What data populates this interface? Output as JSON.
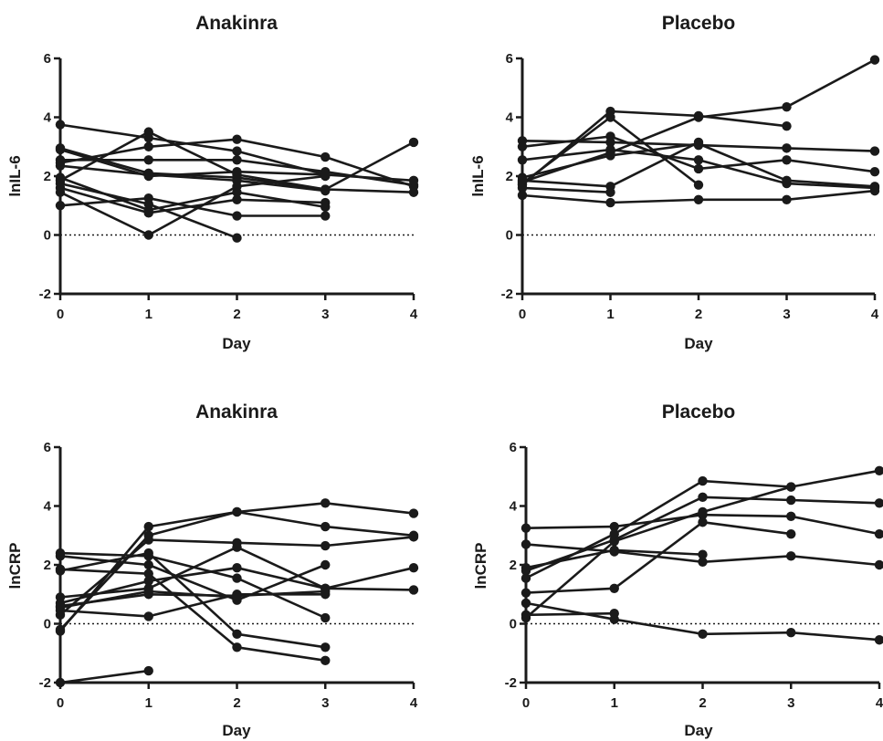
{
  "chart_data": [
    {
      "type": "line",
      "title": "Anakinra",
      "xlabel": "Day",
      "ylabel": "lnIL-6",
      "xlim": [
        0,
        4
      ],
      "ylim": [
        -2,
        6
      ],
      "xticks": [
        "0",
        "1",
        "2",
        "3",
        "4"
      ],
      "yticks": [
        "-2",
        "0",
        "2",
        "4",
        "6"
      ],
      "reference_line": {
        "y": 0,
        "style": "dotted"
      },
      "marker": "filled-circle",
      "color": "#1a1a1a",
      "series": [
        {
          "x": [
            0,
            1,
            2,
            3
          ],
          "y": [
            3.75,
            3.3,
            2.85,
            2.05
          ]
        },
        {
          "x": [
            0,
            1,
            2,
            3,
            4
          ],
          "y": [
            2.95,
            2.1,
            1.95,
            1.55,
            1.45
          ]
        },
        {
          "x": [
            0,
            1,
            2,
            3,
            4
          ],
          "y": [
            2.55,
            2.55,
            2.55,
            2.15,
            1.7
          ]
        },
        {
          "x": [
            0,
            1,
            2,
            3,
            4
          ],
          "y": [
            2.45,
            3.0,
            3.25,
            2.65,
            1.65
          ]
        },
        {
          "x": [
            0,
            1,
            2,
            3
          ],
          "y": [
            2.35,
            2.05,
            1.85,
            1.5
          ]
        },
        {
          "x": [
            0,
            1,
            2,
            3
          ],
          "y": [
            1.95,
            0.85,
            1.45,
            0.95
          ]
        },
        {
          "x": [
            0,
            1,
            2
          ],
          "y": [
            1.75,
            1.05,
            -0.1
          ]
        },
        {
          "x": [
            0,
            1,
            2,
            3
          ],
          "y": [
            1.45,
            0.0,
            1.65,
            2.0
          ]
        },
        {
          "x": [
            0,
            1,
            2,
            3
          ],
          "y": [
            1.0,
            1.25,
            0.65,
            0.65
          ]
        },
        {
          "x": [
            0,
            1,
            2,
            3,
            4
          ],
          "y": [
            1.85,
            3.5,
            2.05,
            1.55,
            3.15
          ]
        },
        {
          "x": [
            0,
            1,
            2,
            3,
            4
          ],
          "y": [
            2.9,
            2.0,
            2.15,
            2.05,
            1.85
          ]
        },
        {
          "x": [
            0,
            1,
            2,
            3
          ],
          "y": [
            1.6,
            0.75,
            1.2,
            1.1
          ]
        }
      ]
    },
    {
      "type": "line",
      "title": "Placebo",
      "xlabel": "Day",
      "ylabel": "lnIL-6",
      "xlim": [
        0,
        4
      ],
      "ylim": [
        -2,
        6
      ],
      "xticks": [
        "0",
        "1",
        "2",
        "3",
        "4"
      ],
      "yticks": [
        "-2",
        "0",
        "2",
        "4",
        "6"
      ],
      "reference_line": {
        "y": 0,
        "style": "dotted"
      },
      "marker": "filled-circle",
      "color": "#1a1a1a",
      "series": [
        {
          "x": [
            0,
            1,
            2,
            3,
            4
          ],
          "y": [
            1.8,
            2.8,
            4.0,
            4.35,
            5.95
          ]
        },
        {
          "x": [
            0,
            1,
            2,
            3
          ],
          "y": [
            1.7,
            4.2,
            4.05,
            3.7
          ]
        },
        {
          "x": [
            0,
            1,
            2,
            3,
            4
          ],
          "y": [
            3.2,
            3.15,
            3.05,
            2.95,
            2.85
          ]
        },
        {
          "x": [
            0,
            1,
            2,
            3,
            4
          ],
          "y": [
            3.0,
            3.35,
            2.25,
            2.55,
            2.15
          ]
        },
        {
          "x": [
            0,
            1,
            2,
            3,
            4
          ],
          "y": [
            2.55,
            2.9,
            2.55,
            1.75,
            1.6
          ]
        },
        {
          "x": [
            0,
            1,
            2,
            3,
            4
          ],
          "y": [
            1.95,
            2.7,
            3.1,
            1.85,
            1.65
          ]
        },
        {
          "x": [
            0,
            1,
            2
          ],
          "y": [
            1.75,
            4.0,
            1.7
          ]
        },
        {
          "x": [
            0,
            1,
            2
          ],
          "y": [
            1.85,
            1.65,
            3.15
          ]
        },
        {
          "x": [
            0,
            1,
            2,
            3,
            4
          ],
          "y": [
            1.35,
            1.1,
            1.2,
            1.2,
            1.5
          ]
        },
        {
          "x": [
            0,
            1
          ],
          "y": [
            1.6,
            1.45
          ]
        }
      ]
    },
    {
      "type": "line",
      "title": "Anakinra",
      "xlabel": "Day",
      "ylabel": "lnCRP",
      "xlim": [
        0,
        4
      ],
      "ylim": [
        -2,
        6
      ],
      "xticks": [
        "0",
        "1",
        "2",
        "3",
        "4"
      ],
      "yticks": [
        "-2",
        "0",
        "2",
        "4",
        "6"
      ],
      "reference_line": {
        "y": 0,
        "style": "dotted"
      },
      "marker": "filled-circle",
      "color": "#1a1a1a",
      "series": [
        {
          "x": [
            0,
            1
          ],
          "y": [
            -2.0,
            -1.6
          ]
        },
        {
          "x": [
            0,
            1,
            2,
            3,
            4
          ],
          "y": [
            -0.25,
            3.3,
            3.8,
            4.1,
            3.75
          ]
        },
        {
          "x": [
            0,
            1,
            2,
            3,
            4
          ],
          "y": [
            -0.2,
            3.0,
            3.8,
            3.3,
            3.0
          ]
        },
        {
          "x": [
            0,
            1,
            2,
            3,
            4
          ],
          "y": [
            0.3,
            2.85,
            2.75,
            2.65,
            2.95
          ]
        },
        {
          "x": [
            0,
            1,
            2,
            3
          ],
          "y": [
            2.4,
            2.3,
            1.55,
            0.2
          ]
        },
        {
          "x": [
            0,
            1,
            2,
            3
          ],
          "y": [
            2.3,
            2.0,
            0.8,
            2.0
          ]
        },
        {
          "x": [
            0,
            1,
            2,
            3
          ],
          "y": [
            1.8,
            2.4,
            -0.35,
            -0.8
          ]
        },
        {
          "x": [
            0,
            1,
            2,
            3
          ],
          "y": [
            1.85,
            1.7,
            -0.8,
            -1.25
          ]
        },
        {
          "x": [
            0,
            1,
            2,
            3,
            4
          ],
          "y": [
            0.9,
            1.2,
            2.6,
            1.2,
            1.15
          ]
        },
        {
          "x": [
            0,
            1,
            2,
            3,
            4
          ],
          "y": [
            0.7,
            1.45,
            1.9,
            1.2,
            1.9
          ]
        },
        {
          "x": [
            0,
            1,
            2
          ],
          "y": [
            0.55,
            1.1,
            0.9
          ]
        },
        {
          "x": [
            0,
            1,
            2,
            3
          ],
          "y": [
            0.45,
            0.25,
            1.0,
            1.0
          ]
        },
        {
          "x": [
            0,
            1,
            2,
            3
          ],
          "y": [
            0.6,
            1.0,
            0.95,
            1.1
          ]
        }
      ]
    },
    {
      "type": "line",
      "title": "Placebo",
      "xlabel": "Day",
      "ylabel": "lnCRP",
      "xlim": [
        0,
        4
      ],
      "ylim": [
        -2,
        6
      ],
      "xticks": [
        "0",
        "1",
        "2",
        "3",
        "4"
      ],
      "yticks": [
        "-2",
        "0",
        "2",
        "4",
        "6"
      ],
      "reference_line": {
        "y": 0,
        "style": "dotted"
      },
      "marker": "filled-circle",
      "color": "#1a1a1a",
      "series": [
        {
          "x": [
            0,
            1,
            2,
            3,
            4
          ],
          "y": [
            3.25,
            3.3,
            3.7,
            3.65,
            3.05
          ]
        },
        {
          "x": [
            0,
            1,
            2,
            3,
            4
          ],
          "y": [
            2.7,
            2.45,
            2.1,
            2.3,
            2.0
          ]
        },
        {
          "x": [
            0,
            1,
            2
          ],
          "y": [
            1.9,
            2.5,
            2.35
          ]
        },
        {
          "x": [
            0,
            1,
            2,
            3,
            4
          ],
          "y": [
            1.55,
            3.05,
            4.85,
            4.65,
            5.2
          ]
        },
        {
          "x": [
            0,
            1,
            2,
            3,
            4
          ],
          "y": [
            1.8,
            2.85,
            4.3,
            4.2,
            4.1
          ]
        },
        {
          "x": [
            0,
            1,
            2,
            3
          ],
          "y": [
            1.05,
            1.2,
            3.45,
            3.05
          ]
        },
        {
          "x": [
            0,
            1,
            2,
            3,
            4
          ],
          "y": [
            0.7,
            0.15,
            -0.35,
            -0.3,
            -0.55
          ]
        },
        {
          "x": [
            0,
            1,
            2,
            3
          ],
          "y": [
            0.2,
            2.8,
            3.8,
            4.65
          ]
        },
        {
          "x": [
            0,
            1
          ],
          "y": [
            0.3,
            0.35
          ]
        }
      ]
    }
  ]
}
